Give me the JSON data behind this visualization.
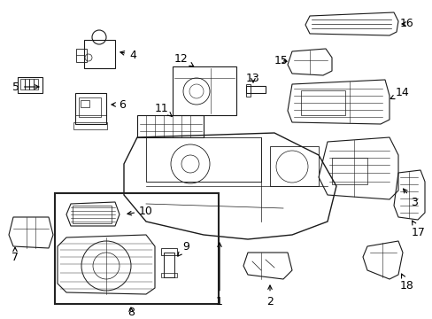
{
  "bg_color": "#ffffff",
  "line_color": "#1a1a1a",
  "text_color": "#000000",
  "figsize": [
    4.89,
    3.6
  ],
  "dpi": 100
}
